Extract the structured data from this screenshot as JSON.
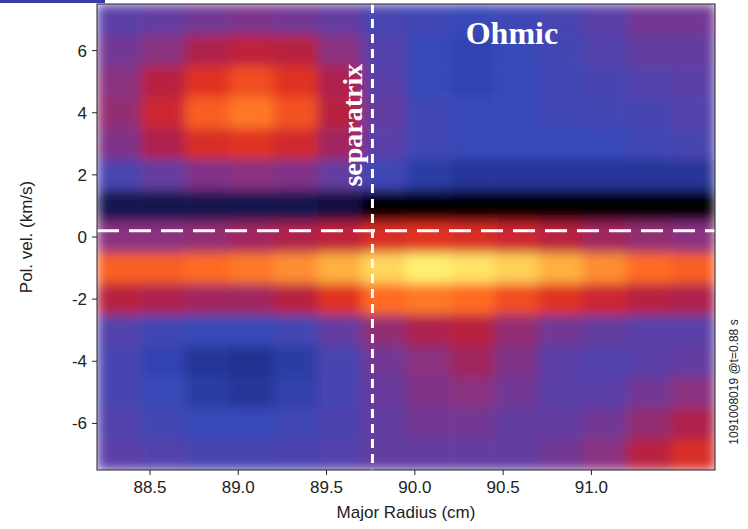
{
  "chart_data": {
    "type": "heatmap",
    "x_label": "Major Radius (cm)",
    "y_label": "Pol. vel. (km/s)",
    "x": [
      88.325,
      88.575,
      88.825,
      89.075,
      89.325,
      89.575,
      89.825,
      90.075,
      90.325,
      90.575,
      90.825,
      91.075,
      91.325,
      91.575
    ],
    "y": [
      7,
      6,
      5,
      4,
      3,
      2,
      1,
      0,
      -1,
      -2,
      -3,
      -4,
      -5,
      -6,
      -7
    ],
    "cells": [
      [
        0.4,
        0.42,
        0.45,
        0.47,
        0.45,
        0.42,
        0.35,
        0.32,
        0.3,
        0.32,
        0.35,
        0.4,
        0.45,
        0.45
      ],
      [
        0.45,
        0.5,
        0.58,
        0.62,
        0.6,
        0.5,
        0.38,
        0.3,
        0.28,
        0.3,
        0.33,
        0.38,
        0.42,
        0.42
      ],
      [
        0.5,
        0.6,
        0.7,
        0.75,
        0.7,
        0.58,
        0.4,
        0.3,
        0.28,
        0.3,
        0.32,
        0.35,
        0.38,
        0.4
      ],
      [
        0.52,
        0.65,
        0.78,
        0.82,
        0.76,
        0.6,
        0.42,
        0.32,
        0.3,
        0.3,
        0.32,
        0.33,
        0.35,
        0.38
      ],
      [
        0.48,
        0.58,
        0.68,
        0.7,
        0.66,
        0.55,
        0.4,
        0.32,
        0.3,
        0.3,
        0.3,
        0.3,
        0.32,
        0.35
      ],
      [
        0.35,
        0.42,
        0.48,
        0.5,
        0.48,
        0.42,
        0.32,
        0.25,
        0.22,
        0.22,
        0.22,
        0.22,
        0.22,
        0.22
      ],
      [
        0.12,
        0.12,
        0.12,
        0.12,
        0.12,
        0.1,
        null,
        null,
        null,
        null,
        null,
        null,
        null,
        null
      ],
      [
        0.5,
        0.5,
        0.52,
        0.55,
        0.58,
        0.62,
        0.68,
        0.7,
        0.68,
        0.65,
        0.6,
        0.55,
        0.52,
        0.5
      ],
      [
        0.78,
        0.78,
        0.8,
        0.82,
        0.85,
        0.9,
        0.96,
        1.0,
        0.98,
        0.95,
        0.9,
        0.85,
        0.8,
        0.78
      ],
      [
        0.6,
        0.58,
        0.55,
        0.55,
        0.6,
        0.7,
        0.8,
        0.82,
        0.8,
        0.75,
        0.7,
        0.65,
        0.6,
        0.58
      ],
      [
        0.38,
        0.32,
        0.3,
        0.3,
        0.33,
        0.42,
        0.52,
        0.58,
        0.6,
        0.52,
        0.45,
        0.42,
        0.4,
        0.4
      ],
      [
        0.35,
        0.28,
        0.22,
        0.2,
        0.25,
        0.35,
        0.45,
        0.5,
        0.55,
        0.48,
        0.4,
        0.38,
        0.4,
        0.42
      ],
      [
        0.35,
        0.3,
        0.25,
        0.22,
        0.27,
        0.35,
        0.43,
        0.48,
        0.5,
        0.45,
        0.4,
        0.4,
        0.45,
        0.5
      ],
      [
        0.38,
        0.33,
        0.3,
        0.3,
        0.32,
        0.36,
        0.42,
        0.45,
        0.45,
        0.42,
        0.42,
        0.45,
        0.52,
        0.58
      ],
      [
        0.4,
        0.38,
        0.35,
        0.35,
        0.36,
        0.38,
        0.42,
        0.42,
        0.42,
        0.42,
        0.45,
        0.5,
        0.6,
        0.68
      ]
    ],
    "zlim": [
      0,
      1
    ],
    "xlim": [
      88.2,
      91.7
    ],
    "ylim": [
      -7.5,
      7.5
    ],
    "xticks": [
      88.5,
      {
        "value": 89,
        "label": "89.0"
      },
      89.5,
      {
        "value": 90,
        "label": "90.0"
      },
      90.5,
      {
        "value": 91,
        "label": "91.0"
      }
    ],
    "yticks": [
      -6,
      -4,
      -2,
      0,
      2,
      4,
      6
    ],
    "reference_lines": [
      {
        "axis": "x",
        "value": 89.76
      },
      {
        "axis": "y",
        "value": 0.2
      }
    ],
    "annotations": [
      {
        "text": "separatrix",
        "x": 89.7,
        "y": 3.6
      },
      {
        "text": "Ohmic",
        "x": 90.55,
        "y": 6.2
      },
      {
        "text": "1091008019 @t=0.88 s"
      }
    ],
    "grid": false
  }
}
